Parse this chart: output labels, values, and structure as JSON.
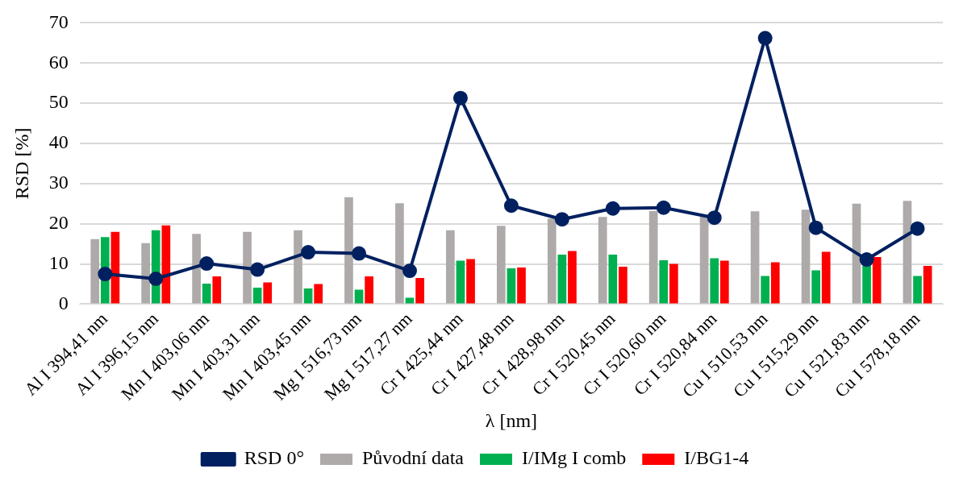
{
  "chart_data": {
    "type": "bar",
    "xlabel": "λ [nm]",
    "ylabel": "RSD [%]",
    "categories": [
      "Al I 394,41 nm",
      "Al I 396,15 nm",
      "Mn I 403,06 nm",
      "Mn I 403,31 nm",
      "Mn I 403,45 nm",
      "Mg I 516,73 nm",
      "Mg I 517,27 nm",
      "Cr I 425,44 nm",
      "Cr I 427,48 nm",
      "Cr I 428,98 nm",
      "Cr I 520,45 nm",
      "Cr I 520,60 nm",
      "Cr I 520,84 nm",
      "Cu I 510,53 nm",
      "Cu I 515,29 nm",
      "Cu I 521,83 nm",
      "Cu I 578,18 nm"
    ],
    "series": [
      {
        "name": "Původní data",
        "color": "#aeaaaa",
        "values": [
          16.2,
          15.2,
          17.5,
          18,
          18.4,
          26.6,
          25.1,
          18.4,
          19.5,
          21.3,
          21.7,
          23.2,
          22,
          23.1,
          23.5,
          25,
          25.7
        ]
      },
      {
        "name": "I/IMg I comb",
        "color": "#00b050",
        "values": [
          16.7,
          18.4,
          5.1,
          4.1,
          3.9,
          3.6,
          1.6,
          10.8,
          8.9,
          12.3,
          12.3,
          10.9,
          11.4,
          7,
          8.4,
          9.6,
          7
        ]
      },
      {
        "name": "I/BG1-4",
        "color": "#ff0000",
        "values": [
          18,
          19.6,
          6.9,
          5.4,
          5,
          6.9,
          6.5,
          11.2,
          9.1,
          13.2,
          9.3,
          10,
          10.8,
          10.4,
          13,
          11.7,
          9.5
        ]
      },
      {
        "name": "RSD 0°",
        "type": "line",
        "color": "#002060",
        "values": [
          7.5,
          6.3,
          10.1,
          8.6,
          12.9,
          12.6,
          8.3,
          51.3,
          24.5,
          21.1,
          23.8,
          24,
          21.5,
          66.2,
          19,
          11.1,
          18.8
        ]
      }
    ],
    "ylim": [
      0,
      70
    ],
    "yticks": [
      0,
      10,
      20,
      30,
      40,
      50,
      60,
      70
    ],
    "grid": "y",
    "legend": "bottom",
    "marker": "circle"
  }
}
